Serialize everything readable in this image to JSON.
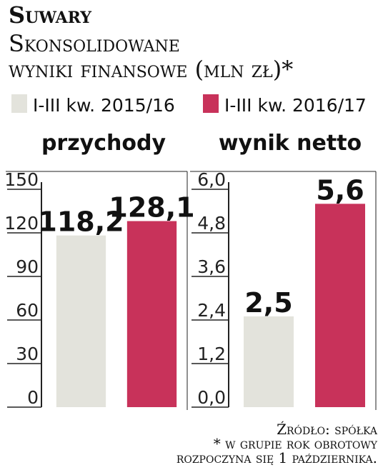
{
  "header": {
    "title": "Suwary",
    "subtitle_line1": "Skonsolidowane",
    "subtitle_line2": "wyniki finansowe (mln zł)*"
  },
  "chart_data": [
    {
      "type": "bar",
      "title": "przychody",
      "series": [
        {
          "name": "I-III kw. 2015/16",
          "color": "#e3e3dc",
          "values": [
            118.2
          ],
          "value_labels": [
            "118,2"
          ]
        },
        {
          "name": "I-III kw. 2016/17",
          "color": "#c8325a",
          "values": [
            128.1
          ],
          "value_labels": [
            "128,1"
          ]
        }
      ],
      "ylim": [
        0,
        150
      ],
      "yticks": [
        0,
        30,
        60,
        90,
        120,
        150
      ],
      "grid": true
    },
    {
      "type": "bar",
      "title": "wynik netto",
      "series": [
        {
          "name": "I-III kw. 2015/16",
          "color": "#e3e3dc",
          "values": [
            2.5
          ],
          "value_labels": [
            "2,5"
          ]
        },
        {
          "name": "I-III kw. 2016/17",
          "color": "#c8325a",
          "values": [
            5.6
          ],
          "value_labels": [
            "5,6"
          ]
        }
      ],
      "ylim": [
        0,
        6
      ],
      "yticks": [
        {
          "value": 0,
          "label": "0,0"
        },
        {
          "value": 1.2,
          "label": "1,2"
        },
        {
          "value": 2.4,
          "label": "2,4"
        },
        {
          "value": 3.6,
          "label": "3,6"
        },
        {
          "value": 4.8,
          "label": "4,8"
        },
        {
          "value": 6,
          "label": "6,0"
        }
      ],
      "grid": true
    }
  ],
  "footer": {
    "source": "Źródło: spółka",
    "note_line1": "* w grupie rok obrotowy",
    "note_line2": "rozpoczyna się 1 października."
  }
}
